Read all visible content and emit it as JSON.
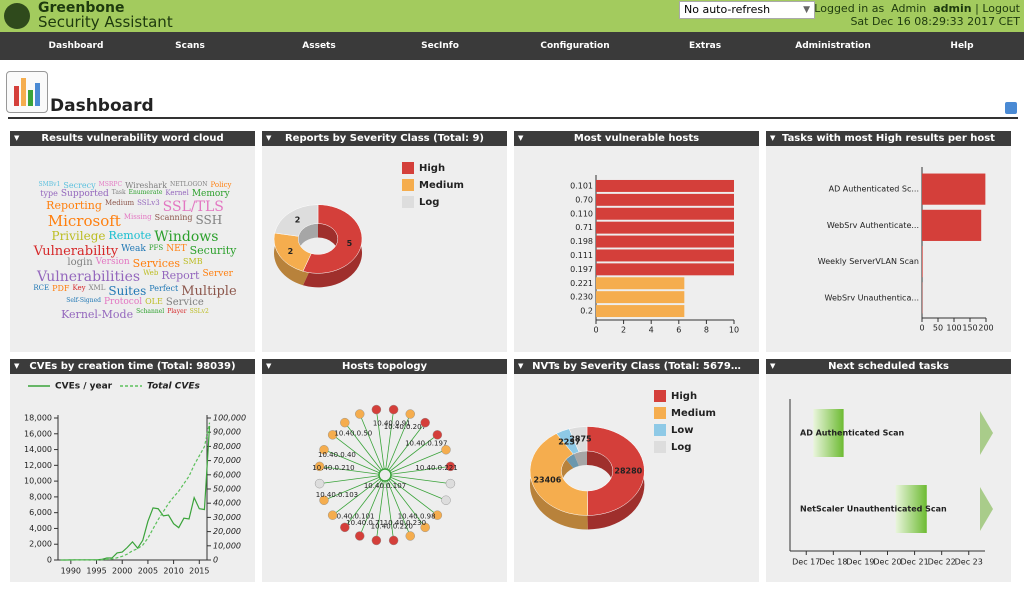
{
  "header": {
    "brand": "Greenbone",
    "product": "Security Assistant",
    "refresh": "No auto-refresh",
    "login_prefix": "Logged in as",
    "role": "Admin",
    "user": "admin",
    "separator": "|",
    "logout": "Logout",
    "datetime": "Sat Dec 16 08:29:33 2017 CET"
  },
  "nav": [
    "Dashboard",
    "Scans",
    "Assets",
    "SecInfo",
    "Configuration",
    "Extras",
    "Administration",
    "Help"
  ],
  "page_title": "Dashboard",
  "chart_data": [
    {
      "type": "wordcloud",
      "title": "Results vulnerability word cloud",
      "words": [
        {
          "text": "SMBv1",
          "color": "#5bc0de"
        },
        {
          "text": "Secrecy",
          "color": "#5bc0de"
        },
        {
          "text": "MSRPC",
          "color": "#e377c2"
        },
        {
          "text": "Wireshark",
          "color": "#7f7f7f"
        },
        {
          "text": "NETLOGON",
          "color": "#7f7f7f"
        },
        {
          "text": "Policy",
          "color": "#ff7f0e"
        },
        {
          "text": "type",
          "color": "#9467bd"
        },
        {
          "text": "Supported",
          "color": "#9467bd"
        },
        {
          "text": "Task",
          "color": "#7f7f7f"
        },
        {
          "text": "Enumerate",
          "color": "#2ca02c"
        },
        {
          "text": "Kernel",
          "color": "#9467bd"
        },
        {
          "text": "Memory",
          "color": "#2ca02c"
        },
        {
          "text": "Reporting",
          "color": "#ff7f0e"
        },
        {
          "text": "Medium",
          "color": "#8c564b"
        },
        {
          "text": "SSLv3",
          "color": "#9467bd"
        },
        {
          "text": "SSL/TLS",
          "color": "#e377c2"
        },
        {
          "text": "Microsoft",
          "color": "#ff7f0e"
        },
        {
          "text": "Missing",
          "color": "#e377c2"
        },
        {
          "text": "Scanning",
          "color": "#8c564b"
        },
        {
          "text": "SSH",
          "color": "#7f7f7f"
        },
        {
          "text": "Privilege",
          "color": "#bcbd22"
        },
        {
          "text": "Remote",
          "color": "#17becf"
        },
        {
          "text": "Windows",
          "color": "#2ca02c"
        },
        {
          "text": "Vulnerability",
          "color": "#d62728"
        },
        {
          "text": "Weak",
          "color": "#1f77b4"
        },
        {
          "text": "PFS",
          "color": "#2ca02c"
        },
        {
          "text": "NET",
          "color": "#ff7f0e"
        },
        {
          "text": "Security",
          "color": "#2ca02c"
        },
        {
          "text": "login",
          "color": "#7f7f7f"
        },
        {
          "text": "Version",
          "color": "#e377c2"
        },
        {
          "text": "Services",
          "color": "#ff7f0e"
        },
        {
          "text": "SMB",
          "color": "#bcbd22"
        },
        {
          "text": "Vulnerabilities",
          "color": "#9467bd"
        },
        {
          "text": "Web",
          "color": "#bcbd22"
        },
        {
          "text": "Report",
          "color": "#9467bd"
        },
        {
          "text": "Server",
          "color": "#ff7f0e"
        },
        {
          "text": "RCE",
          "color": "#1f77b4"
        },
        {
          "text": "PDF",
          "color": "#ff7f0e"
        },
        {
          "text": "Key",
          "color": "#d62728"
        },
        {
          "text": "XML",
          "color": "#7f7f7f"
        },
        {
          "text": "Suites",
          "color": "#1f77b4"
        },
        {
          "text": "Perfect",
          "color": "#1f77b4"
        },
        {
          "text": "Multiple",
          "color": "#8c564b"
        },
        {
          "text": "Self-Signed",
          "color": "#1f77b4"
        },
        {
          "text": "Protocol",
          "color": "#e377c2"
        },
        {
          "text": "OLE",
          "color": "#bcbd22"
        },
        {
          "text": "Service",
          "color": "#7f7f7f"
        },
        {
          "text": "Kernel-Mode",
          "color": "#9467bd"
        },
        {
          "text": "Schannel",
          "color": "#2ca02c"
        },
        {
          "text": "Player",
          "color": "#d62728"
        },
        {
          "text": "SSLv2",
          "color": "#bcbd22"
        }
      ]
    },
    {
      "type": "donut",
      "title": "Reports by Severity Class (Total: 9)",
      "categories": [
        "High",
        "Medium",
        "Log"
      ],
      "values": [
        5,
        2,
        2
      ],
      "colors": [
        "#d43f3a",
        "#f5ad4e",
        "#dddddd"
      ]
    },
    {
      "type": "hbar",
      "title": "Most vulnerable hosts",
      "categories": [
        "0.101",
        "0.70",
        "0.110",
        "0.71",
        "0.198",
        "0.111",
        "0.197",
        "0.221",
        "0.230",
        "0.2"
      ],
      "values": [
        10,
        10,
        10,
        10,
        10,
        10,
        10,
        6.4,
        6.4,
        6.4
      ],
      "colors": [
        "#d43f3a",
        "#d43f3a",
        "#d43f3a",
        "#d43f3a",
        "#d43f3a",
        "#d43f3a",
        "#d43f3a",
        "#f5ad4e",
        "#f5ad4e",
        "#f5ad4e"
      ],
      "xlim": [
        0,
        10
      ],
      "xticks": [
        0,
        2,
        4,
        6,
        8,
        10
      ]
    },
    {
      "type": "hbar",
      "title": "Tasks with most High results per host",
      "categories": [
        "AD Authenticated Sc...",
        "WebSrv Authenticate...",
        "Weekly ServerVLAN Scan",
        "WebSrv Unauthentica..."
      ],
      "values": [
        198,
        185,
        2,
        1
      ],
      "colors": [
        "#d43f3a",
        "#d43f3a",
        "#d43f3a",
        "#d43f3a"
      ],
      "xlim": [
        0,
        200
      ],
      "xticks": [
        0,
        50,
        100,
        150,
        200
      ]
    },
    {
      "type": "line",
      "title": "CVEs by creation time (Total: 98039)",
      "x": [
        1988,
        1989,
        1990,
        1991,
        1992,
        1993,
        1994,
        1995,
        1996,
        1997,
        1998,
        1999,
        2000,
        2001,
        2002,
        2003,
        2004,
        2005,
        2006,
        2007,
        2008,
        2009,
        2010,
        2011,
        2012,
        2013,
        2014,
        2015,
        2016,
        2017
      ],
      "series": [
        {
          "name": "CVEs / year",
          "color": "#3aa33a",
          "values": [
            2,
            3,
            11,
            15,
            13,
            13,
            25,
            25,
            75,
            250,
            250,
            900,
            1000,
            1600,
            2300,
            1500,
            2500,
            4900,
            6600,
            6500,
            5600,
            5700,
            4600,
            4100,
            5300,
            5200,
            7900,
            6500,
            6400,
            17000
          ]
        },
        {
          "name": "Total CVEs",
          "color": "#5cc05c",
          "axis": "y2",
          "values": [
            2,
            5,
            16,
            31,
            44,
            57,
            82,
            107,
            182,
            432,
            682,
            1582,
            2582,
            4182,
            6482,
            7982,
            10482,
            15382,
            21982,
            28482,
            34082,
            39782,
            44382,
            48482,
            53782,
            58982,
            66882,
            73382,
            79782,
            96782
          ]
        }
      ],
      "xlim": [
        1987.5,
        2016.5
      ],
      "xticks": [
        1990,
        1995,
        2000,
        2005,
        2010,
        2015
      ],
      "ylim": [
        0,
        18000
      ],
      "yticks": [
        0,
        {
          "value": 2000,
          "label": "2,000"
        },
        {
          "value": 4000,
          "label": "4,000"
        },
        {
          "value": 6000,
          "label": "6,000"
        },
        {
          "value": 8000,
          "label": "8,000"
        },
        {
          "value": 10000,
          "label": "10,000"
        },
        {
          "value": 12000,
          "label": "12,000"
        },
        {
          "value": 14000,
          "label": "14,000"
        },
        {
          "value": 16000,
          "label": "16,000"
        },
        {
          "value": 18000,
          "label": "18,000"
        }
      ],
      "y2lim": [
        0,
        100000
      ],
      "y2ticks": [
        0,
        {
          "value": 10000,
          "label": "10,000"
        },
        {
          "value": 20000,
          "label": "20,000"
        },
        {
          "value": 30000,
          "label": "30,000"
        },
        {
          "value": 40000,
          "label": "40,000"
        },
        {
          "value": 50000,
          "label": "50,000"
        },
        {
          "value": 60000,
          "label": "60,000"
        },
        {
          "value": 70000,
          "label": "70,000"
        },
        {
          "value": 80000,
          "label": "80,000"
        },
        {
          "value": 90000,
          "label": "90,000"
        },
        {
          "value": 100000,
          "label": "100,000"
        }
      ]
    },
    {
      "type": "topology",
      "title": "Hosts topology",
      "center": "10.40.0.107",
      "nodes": [
        {
          "label": "10.40.0.91",
          "color": "#d43f3a"
        },
        {
          "label": "10.40.0.207",
          "color": "#f5ad4e"
        },
        {
          "label": null,
          "color": "#d43f3a"
        },
        {
          "label": "10.40.0.197",
          "color": "#d43f3a"
        },
        {
          "label": null,
          "color": "#f5ad4e"
        },
        {
          "label": "10.40.0.221",
          "color": "#d43f3a"
        },
        {
          "label": null,
          "color": "#dddddd"
        },
        {
          "label": null,
          "color": "#dddddd"
        },
        {
          "label": null,
          "color": "#f5ad4e"
        },
        {
          "label": "10.40.0.98",
          "color": "#f5ad4e"
        },
        {
          "label": "10.40.0.230",
          "color": "#f5ad4e"
        },
        {
          "label": "10.40.0.220",
          "color": "#d43f3a"
        },
        {
          "label": null,
          "color": "#d43f3a"
        },
        {
          "label": "10.40.0.71",
          "color": "#d43f3a"
        },
        {
          "label": "10.40.0.101",
          "color": "#d43f3a"
        },
        {
          "label": null,
          "color": "#f5ad4e"
        },
        {
          "label": "10.40.0.103",
          "color": "#f5ad4e"
        },
        {
          "label": null,
          "color": "#dddddd"
        },
        {
          "label": "10.40.0.210",
          "color": "#f5ad4e"
        },
        {
          "label": "10.40.0.40",
          "color": "#f5ad4e"
        },
        {
          "label": null,
          "color": "#f5ad4e"
        },
        {
          "label": "10.40.0.50",
          "color": "#f5ad4e"
        },
        {
          "label": null,
          "color": "#f5ad4e"
        },
        {
          "label": null,
          "color": "#d43f3a"
        }
      ]
    },
    {
      "type": "donut",
      "title": "NVTs by Severity Class (Total: 5679…",
      "categories": [
        "High",
        "Medium",
        "Low",
        "Log"
      ],
      "values": [
        28280,
        23406,
        2237,
        2875
      ],
      "colors": [
        "#d43f3a",
        "#f5ad4e",
        "#8ec9e6",
        "#dddddd"
      ]
    },
    {
      "type": "gantt",
      "title": "Next scheduled tasks",
      "tasks": [
        {
          "name": "AD Authenticated Scan",
          "start": 17.26,
          "end": 18.38
        },
        {
          "name": "NetScaler Unauthenticated Scan",
          "start": 20.3,
          "end": 21.45
        }
      ],
      "xlim": [
        16.4,
        23.6
      ],
      "xticks": [
        {
          "value": 17,
          "label": "Dec 17"
        },
        {
          "value": 18,
          "label": "Dec 18"
        },
        {
          "value": 19,
          "label": "Dec 19"
        },
        {
          "value": 20,
          "label": "Dec 20"
        },
        {
          "value": 21,
          "label": "Dec 21"
        },
        {
          "value": 22,
          "label": "Dec 22"
        },
        {
          "value": 23,
          "label": "Dec 23"
        }
      ]
    }
  ]
}
